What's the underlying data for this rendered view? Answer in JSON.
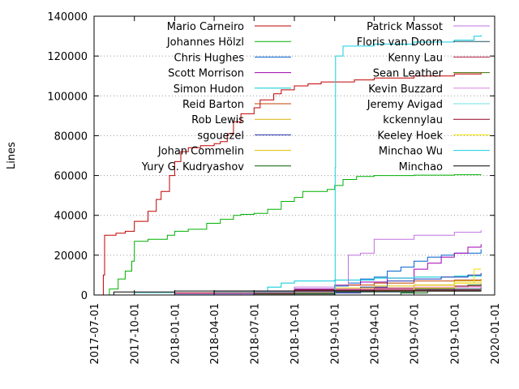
{
  "chart_data": {
    "type": "line",
    "title": "",
    "xlabel": "",
    "ylabel": "Lines",
    "xlim": [
      "2017-07-01",
      "2020-01-01"
    ],
    "ylim": [
      0,
      140000
    ],
    "x_ticks": [
      "2017-07-01",
      "2017-10-01",
      "2018-01-01",
      "2018-04-01",
      "2018-07-01",
      "2018-10-01",
      "2019-01-01",
      "2019-04-01",
      "2019-07-01",
      "2019-10-01",
      "2020-01-01"
    ],
    "y_ticks": [
      0,
      20000,
      40000,
      60000,
      80000,
      100000,
      120000,
      140000
    ],
    "grid": "horizontal dotted from 20000 to 120000",
    "legend": "two columns, top",
    "series": [
      {
        "name": "Mario Carneiro",
        "color": "#c00000",
        "points": [
          [
            "2017-07-01",
            0
          ],
          [
            "2017-07-20",
            0
          ],
          [
            "2017-07-22",
            10000
          ],
          [
            "2017-07-25",
            30000
          ],
          [
            "2017-08-20",
            31000
          ],
          [
            "2017-09-10",
            32000
          ],
          [
            "2017-10-01",
            37000
          ],
          [
            "2017-11-01",
            42000
          ],
          [
            "2017-11-20",
            48000
          ],
          [
            "2017-12-01",
            52000
          ],
          [
            "2017-12-20",
            60000
          ],
          [
            "2018-01-01",
            67000
          ],
          [
            "2018-01-15",
            72000
          ],
          [
            "2018-02-01",
            74000
          ],
          [
            "2018-03-01",
            75000
          ],
          [
            "2018-04-01",
            76000
          ],
          [
            "2018-04-15",
            77000
          ],
          [
            "2018-05-01",
            81000
          ],
          [
            "2018-05-15",
            87000
          ],
          [
            "2018-06-01",
            91000
          ],
          [
            "2018-07-01",
            94000
          ],
          [
            "2018-07-15",
            98000
          ],
          [
            "2018-08-15",
            101000
          ],
          [
            "2018-09-01",
            103000
          ],
          [
            "2018-10-01",
            105000
          ],
          [
            "2018-11-01",
            106000
          ],
          [
            "2018-12-01",
            107000
          ],
          [
            "2019-01-01",
            107000
          ],
          [
            "2019-02-15",
            108000
          ],
          [
            "2019-04-01",
            109000
          ],
          [
            "2019-07-01",
            110000
          ],
          [
            "2019-10-01",
            111000
          ],
          [
            "2019-12-01",
            111500
          ]
        ]
      },
      {
        "name": "Johannes Hölzl",
        "color": "#00b000",
        "points": [
          [
            "2017-07-01",
            0
          ],
          [
            "2017-08-01",
            0
          ],
          [
            "2017-08-05",
            3000
          ],
          [
            "2017-08-25",
            8000
          ],
          [
            "2017-09-10",
            12000
          ],
          [
            "2017-09-25",
            17000
          ],
          [
            "2017-10-01",
            27000
          ],
          [
            "2017-11-01",
            28000
          ],
          [
            "2017-12-15",
            30000
          ],
          [
            "2018-01-01",
            32000
          ],
          [
            "2018-02-01",
            33000
          ],
          [
            "2018-03-15",
            36000
          ],
          [
            "2018-04-15",
            38000
          ],
          [
            "2018-05-15",
            40000
          ],
          [
            "2018-06-01",
            40500
          ],
          [
            "2018-07-01",
            41000
          ],
          [
            "2018-08-01",
            43000
          ],
          [
            "2018-09-01",
            47000
          ],
          [
            "2018-10-01",
            49000
          ],
          [
            "2018-10-20",
            52000
          ],
          [
            "2018-12-15",
            53000
          ],
          [
            "2019-01-01",
            55000
          ],
          [
            "2019-01-20",
            58000
          ],
          [
            "2019-02-20",
            59500
          ],
          [
            "2019-04-01",
            60000
          ],
          [
            "2019-07-01",
            60200
          ],
          [
            "2019-10-01",
            60400
          ],
          [
            "2019-12-01",
            60500
          ]
        ]
      },
      {
        "name": "Chris Hughes",
        "color": "#0060d0",
        "points": [
          [
            "2017-07-01",
            0
          ],
          [
            "2018-01-01",
            0
          ],
          [
            "2018-04-01",
            500
          ],
          [
            "2018-07-01",
            1200
          ],
          [
            "2018-10-01",
            3000
          ],
          [
            "2019-01-01",
            4500
          ],
          [
            "2019-02-01",
            6000
          ],
          [
            "2019-03-01",
            8000
          ],
          [
            "2019-04-01",
            9000
          ],
          [
            "2019-05-01",
            12000
          ],
          [
            "2019-06-01",
            14000
          ],
          [
            "2019-07-01",
            17000
          ],
          [
            "2019-08-01",
            19000
          ],
          [
            "2019-09-01",
            20000
          ],
          [
            "2019-10-01",
            21000
          ],
          [
            "2019-12-01",
            23000
          ]
        ]
      },
      {
        "name": "Scott Morrison",
        "color": "#a000b0",
        "points": [
          [
            "2017-07-01",
            0
          ],
          [
            "2018-01-01",
            0
          ],
          [
            "2018-06-01",
            1000
          ],
          [
            "2018-10-01",
            3000
          ],
          [
            "2019-01-01",
            5000
          ],
          [
            "2019-03-01",
            6500
          ],
          [
            "2019-05-01",
            8500
          ],
          [
            "2019-07-01",
            13000
          ],
          [
            "2019-08-01",
            16000
          ],
          [
            "2019-09-01",
            19000
          ],
          [
            "2019-10-01",
            21000
          ],
          [
            "2019-11-01",
            24000
          ],
          [
            "2019-12-01",
            25500
          ]
        ]
      },
      {
        "name": "Simon Hudon",
        "color": "#00c8d8",
        "points": [
          [
            "2017-07-01",
            0
          ],
          [
            "2017-10-01",
            0
          ],
          [
            "2018-01-01",
            200
          ],
          [
            "2018-04-01",
            600
          ],
          [
            "2018-07-01",
            1200
          ],
          [
            "2018-08-01",
            4000
          ],
          [
            "2018-09-01",
            6000
          ],
          [
            "2018-10-01",
            7000
          ],
          [
            "2019-01-01",
            7500
          ],
          [
            "2019-04-01",
            8500
          ],
          [
            "2019-07-01",
            9000
          ],
          [
            "2019-10-01",
            9500
          ],
          [
            "2019-12-01",
            9800
          ]
        ]
      },
      {
        "name": "Reid Barton",
        "color": "#c04000",
        "points": [
          [
            "2017-07-01",
            0
          ],
          [
            "2018-04-01",
            0
          ],
          [
            "2018-07-01",
            500
          ],
          [
            "2018-10-01",
            2000
          ],
          [
            "2019-01-01",
            5000
          ],
          [
            "2019-04-01",
            6000
          ],
          [
            "2019-07-01",
            7000
          ],
          [
            "2019-10-01",
            7500
          ],
          [
            "2019-12-01",
            8000
          ]
        ]
      },
      {
        "name": "Rob Lewis",
        "color": "#d8b000",
        "points": [
          [
            "2017-07-01",
            0
          ],
          [
            "2018-01-01",
            0
          ],
          [
            "2018-07-01",
            500
          ],
          [
            "2019-01-01",
            1500
          ],
          [
            "2019-04-01",
            3000
          ],
          [
            "2019-07-01",
            5000
          ],
          [
            "2019-10-01",
            7000
          ],
          [
            "2019-12-01",
            8000
          ]
        ]
      },
      {
        "name": "sgouezel",
        "color": "#2030b0",
        "points": [
          [
            "2017-07-01",
            0
          ],
          [
            "2018-10-01",
            0
          ],
          [
            "2019-01-01",
            1000
          ],
          [
            "2019-03-01",
            4000
          ],
          [
            "2019-05-01",
            7000
          ],
          [
            "2019-07-01",
            8000
          ],
          [
            "2019-09-01",
            9000
          ],
          [
            "2019-11-01",
            10000
          ],
          [
            "2019-12-01",
            11000
          ]
        ]
      },
      {
        "name": "Johan Commelin",
        "color": "#e0c000",
        "points": [
          [
            "2017-07-01",
            0
          ],
          [
            "2018-04-01",
            0
          ],
          [
            "2018-07-01",
            1000
          ],
          [
            "2018-10-01",
            2500
          ],
          [
            "2019-01-01",
            3500
          ],
          [
            "2019-04-01",
            4500
          ],
          [
            "2019-07-01",
            5000
          ],
          [
            "2019-10-01",
            6000
          ],
          [
            "2019-12-01",
            6500
          ]
        ]
      },
      {
        "name": "Yury G. Kudryashov",
        "color": "#006000",
        "points": [
          [
            "2017-07-01",
            0
          ],
          [
            "2019-04-01",
            0
          ],
          [
            "2019-06-01",
            1000
          ],
          [
            "2019-08-01",
            2500
          ],
          [
            "2019-10-01",
            4000
          ],
          [
            "2019-11-01",
            5000
          ],
          [
            "2019-12-01",
            5500
          ]
        ]
      },
      {
        "name": "Patrick Massot",
        "color": "#c070e0",
        "points": [
          [
            "2017-07-01",
            0
          ],
          [
            "2018-01-01",
            0
          ],
          [
            "2018-07-01",
            2000
          ],
          [
            "2018-10-01",
            4000
          ],
          [
            "2019-01-01",
            5000
          ],
          [
            "2019-02-01",
            20000
          ],
          [
            "2019-03-01",
            21000
          ],
          [
            "2019-04-01",
            28000
          ],
          [
            "2019-07-01",
            30000
          ],
          [
            "2019-10-01",
            31500
          ],
          [
            "2019-12-01",
            32500
          ]
        ]
      },
      {
        "name": "Floris van Doorn",
        "color": "#205060",
        "points": [
          [
            "2017-07-01",
            0
          ],
          [
            "2018-01-01",
            0
          ],
          [
            "2018-07-01",
            500
          ],
          [
            "2019-01-01",
            1500
          ],
          [
            "2019-07-01",
            3000
          ],
          [
            "2019-12-01",
            4000
          ]
        ]
      },
      {
        "name": "Kenny Lau",
        "color": "#b02040",
        "points": [
          [
            "2017-07-01",
            0
          ],
          [
            "2018-01-01",
            0
          ],
          [
            "2018-04-01",
            1000
          ],
          [
            "2018-10-01",
            2500
          ],
          [
            "2019-04-01",
            3500
          ],
          [
            "2019-10-01",
            4500
          ],
          [
            "2019-12-01",
            5000
          ]
        ]
      },
      {
        "name": "Sean Leather",
        "color": "#407000",
        "points": [
          [
            "2017-07-01",
            0
          ],
          [
            "2018-07-01",
            0
          ],
          [
            "2018-10-01",
            1000
          ],
          [
            "2019-01-01",
            2000
          ],
          [
            "2019-12-01",
            2500
          ]
        ]
      },
      {
        "name": "Kevin Buzzard",
        "color": "#e080e0",
        "points": [
          [
            "2017-07-01",
            0
          ],
          [
            "2017-10-01",
            0
          ],
          [
            "2018-01-01",
            500
          ],
          [
            "2018-07-01",
            1500
          ],
          [
            "2019-01-01",
            3000
          ],
          [
            "2019-07-01",
            4000
          ],
          [
            "2019-12-01",
            4500
          ]
        ]
      },
      {
        "name": "Jeremy Avigad",
        "color": "#70e0e0",
        "points": [
          [
            "2017-07-01",
            0
          ],
          [
            "2017-10-01",
            1000
          ],
          [
            "2018-04-01",
            1500
          ],
          [
            "2018-10-01",
            2000
          ],
          [
            "2019-04-01",
            2500
          ],
          [
            "2019-12-01",
            3000
          ]
        ]
      },
      {
        "name": "kckennylau",
        "color": "#900020",
        "points": [
          [
            "2017-07-01",
            0
          ],
          [
            "2017-10-01",
            0
          ],
          [
            "2018-01-01",
            1000
          ],
          [
            "2018-04-01",
            2000
          ],
          [
            "2018-10-01",
            2500
          ],
          [
            "2019-12-01",
            2600
          ]
        ]
      },
      {
        "name": "Keeley Hoek",
        "color": "#f0e000",
        "points": [
          [
            "2017-07-01",
            0
          ],
          [
            "2019-01-01",
            0
          ],
          [
            "2019-04-01",
            2000
          ],
          [
            "2019-07-01",
            3500
          ],
          [
            "2019-10-01",
            6000
          ],
          [
            "2019-11-15",
            13000
          ],
          [
            "2019-12-01",
            13000
          ]
        ]
      },
      {
        "name": "Minchao Wu",
        "color": "#10d0e0",
        "points": [
          [
            "2017-07-01",
            0
          ],
          [
            "2018-12-31",
            0
          ],
          [
            "2019-01-02",
            64000
          ],
          [
            "2019-01-03",
            120000
          ],
          [
            "2019-01-20",
            125000
          ],
          [
            "2019-04-01",
            126000
          ],
          [
            "2019-07-01",
            127000
          ],
          [
            "2019-10-01",
            128000
          ],
          [
            "2019-11-15",
            130000
          ],
          [
            "2019-12-01",
            130500
          ]
        ]
      },
      {
        "name": "Minchao",
        "color": "#000000",
        "points": [
          [
            "2017-07-01",
            0
          ],
          [
            "2017-08-01",
            0
          ],
          [
            "2017-08-15",
            1500
          ],
          [
            "2018-01-01",
            2000
          ],
          [
            "2018-07-01",
            2000
          ],
          [
            "2019-01-01",
            2000
          ],
          [
            "2019-12-01",
            2000
          ]
        ]
      }
    ]
  }
}
